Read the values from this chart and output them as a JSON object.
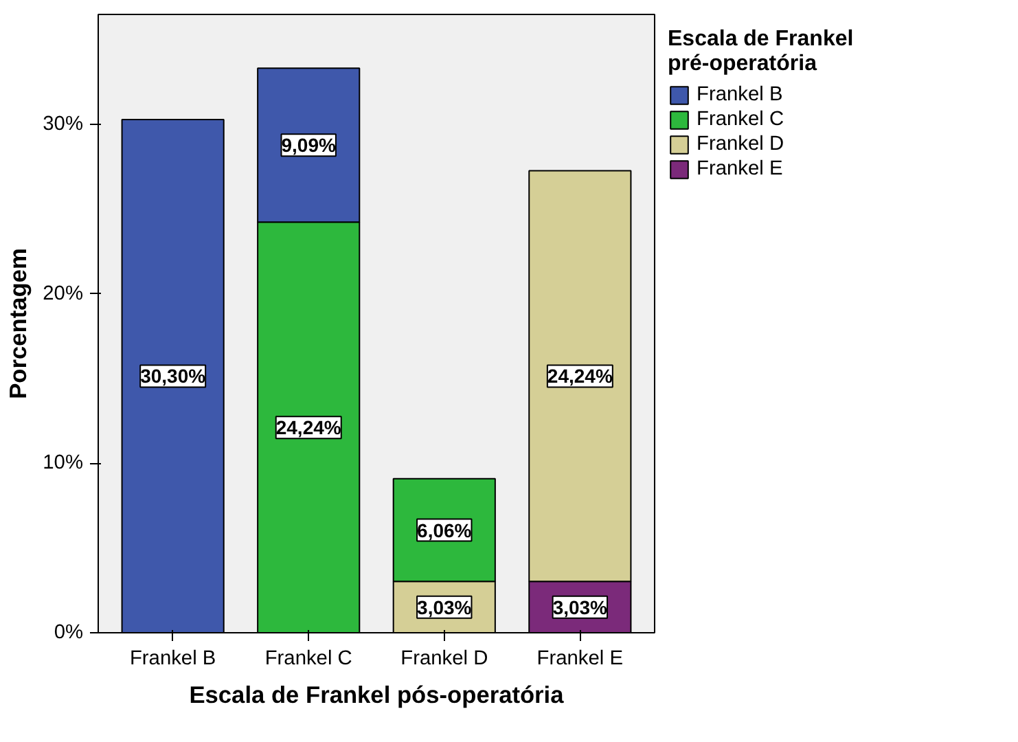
{
  "chart_data": {
    "type": "bar",
    "stacked": true,
    "xlabel": "Escala de Frankel pós-operatória",
    "ylabel": "Porcentagem",
    "legend_title": "Escala de Frankel pré-operatória",
    "categories": [
      "Frankel B",
      "Frankel C",
      "Frankel D",
      "Frankel E"
    ],
    "series": [
      {
        "name": "Frankel E",
        "color": "#7b2a7a",
        "values": [
          null,
          null,
          null,
          3.03
        ],
        "value_labels": [
          null,
          null,
          null,
          "3,03%"
        ]
      },
      {
        "name": "Frankel D",
        "color": "#d5cf96",
        "values": [
          null,
          null,
          3.03,
          24.24
        ],
        "value_labels": [
          null,
          null,
          "3,03%",
          "24,24%"
        ]
      },
      {
        "name": "Frankel C",
        "color": "#2db83d",
        "values": [
          null,
          24.24,
          6.06,
          null
        ],
        "value_labels": [
          null,
          "24,24%",
          "6,06%",
          null
        ]
      },
      {
        "name": "Frankel B",
        "color": "#3f58ab",
        "values": [
          30.3,
          9.09,
          null,
          null
        ],
        "value_labels": [
          "30,30%",
          "9,09%",
          null,
          null
        ]
      }
    ],
    "ylim": [
      0,
      36.5
    ],
    "yticks": [
      {
        "value": 0,
        "label": "0%"
      },
      {
        "value": 10,
        "label": "10%"
      },
      {
        "value": 20,
        "label": "20%"
      },
      {
        "value": 30,
        "label": "30%"
      }
    ],
    "grid": false,
    "legend": "top right"
  }
}
